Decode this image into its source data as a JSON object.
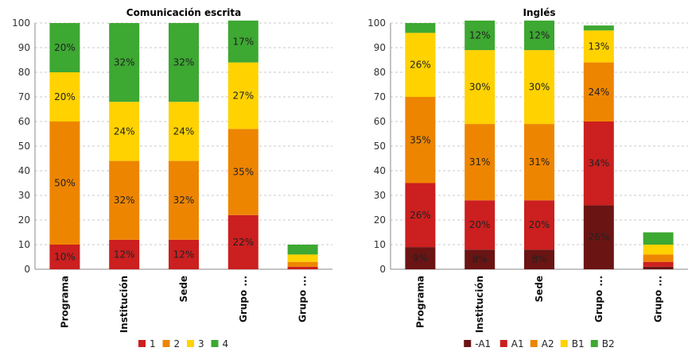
{
  "chart_data": [
    {
      "type": "bar",
      "stacked": true,
      "title": "Comunicación escrita",
      "categories": [
        "Programa",
        "Institución",
        "Sede",
        "Grupo ...",
        "Grupo ..."
      ],
      "ylim": [
        0,
        100
      ],
      "yticks": [
        0,
        10,
        20,
        30,
        40,
        50,
        60,
        70,
        80,
        90,
        100
      ],
      "grid": true,
      "legend_position": "bottom",
      "series": [
        {
          "name": "1",
          "color": "#cc1f1f",
          "values": [
            10,
            12,
            12,
            22,
            1
          ],
          "labels": [
            "10%",
            "12%",
            "12%",
            "22%",
            ""
          ]
        },
        {
          "name": "2",
          "color": "#ee8500",
          "values": [
            50,
            32,
            32,
            35,
            2
          ],
          "labels": [
            "50%",
            "32%",
            "32%",
            "35%",
            ""
          ]
        },
        {
          "name": "3",
          "color": "#ffd200",
          "values": [
            20,
            24,
            24,
            27,
            3
          ],
          "labels": [
            "20%",
            "24%",
            "24%",
            "27%",
            ""
          ]
        },
        {
          "name": "4",
          "color": "#3da832",
          "values": [
            20,
            32,
            32,
            17,
            4
          ],
          "labels": [
            "20%",
            "32%",
            "32%",
            "17%",
            ""
          ]
        }
      ]
    },
    {
      "type": "bar",
      "stacked": true,
      "title": "Inglés",
      "categories": [
        "Programa",
        "Institución",
        "Sede",
        "Grupo ...",
        "Grupo ..."
      ],
      "ylim": [
        0,
        100
      ],
      "yticks": [
        0,
        10,
        20,
        30,
        40,
        50,
        60,
        70,
        80,
        90,
        100
      ],
      "grid": true,
      "legend_position": "bottom",
      "series": [
        {
          "name": "-A1",
          "color": "#6b1414",
          "values": [
            9,
            8,
            8,
            26,
            1
          ],
          "labels": [
            "9%",
            "8%",
            "8%",
            "26%",
            ""
          ]
        },
        {
          "name": "A1",
          "color": "#cc1f1f",
          "values": [
            26,
            20,
            20,
            34,
            2
          ],
          "labels": [
            "26%",
            "20%",
            "20%",
            "34%",
            ""
          ]
        },
        {
          "name": "A2",
          "color": "#ee8500",
          "values": [
            35,
            31,
            31,
            24,
            3
          ],
          "labels": [
            "35%",
            "31%",
            "31%",
            "24%",
            ""
          ]
        },
        {
          "name": "B1",
          "color": "#ffd200",
          "values": [
            26,
            30,
            30,
            13,
            4
          ],
          "labels": [
            "26%",
            "30%",
            "30%",
            "13%",
            ""
          ]
        },
        {
          "name": "B2",
          "color": "#3da832",
          "values": [
            4,
            12,
            12,
            2,
            5
          ],
          "labels": [
            "",
            "12%",
            "12%",
            "",
            ""
          ]
        }
      ]
    }
  ]
}
